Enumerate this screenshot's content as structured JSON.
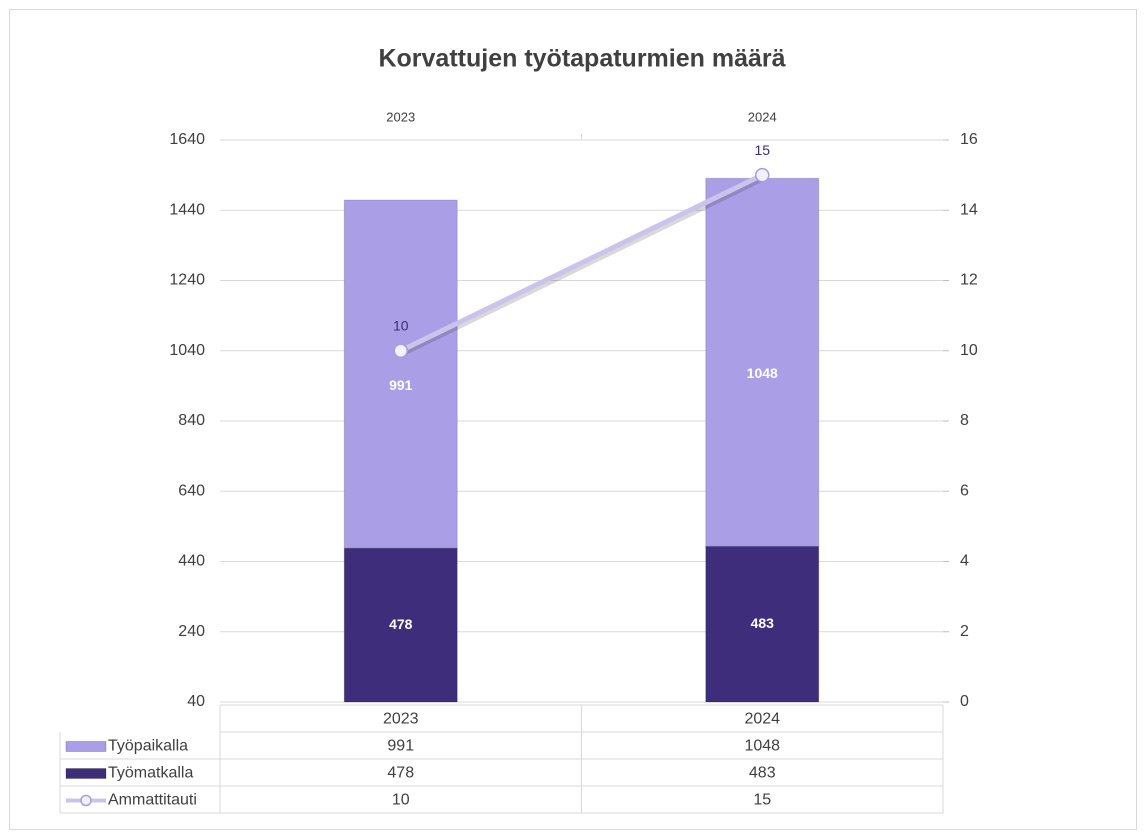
{
  "chart_data": {
    "type": "bar",
    "title": "Korvattujen työtapaturmien määrä",
    "categories": [
      "2023",
      "2024"
    ],
    "series": [
      {
        "name": "Työpaikalla",
        "type": "bar",
        "color": "#aa9fe6",
        "values": [
          991,
          1048
        ]
      },
      {
        "name": "Työmatkalla",
        "type": "bar",
        "color": "#3d2d7a",
        "values": [
          478,
          483
        ]
      },
      {
        "name": "Ammattitauti",
        "type": "line",
        "axis": "y2",
        "color": "#cbc3ec",
        "values": [
          10,
          15
        ]
      }
    ],
    "stacked": true,
    "ylim": [
      40,
      1640
    ],
    "yticks": [
      40,
      240,
      440,
      640,
      840,
      1040,
      1240,
      1440,
      1640
    ],
    "y2lim": [
      0,
      16
    ],
    "y2ticks": [
      0,
      2,
      4,
      6,
      8,
      10,
      12,
      14,
      16
    ],
    "grid": true
  }
}
